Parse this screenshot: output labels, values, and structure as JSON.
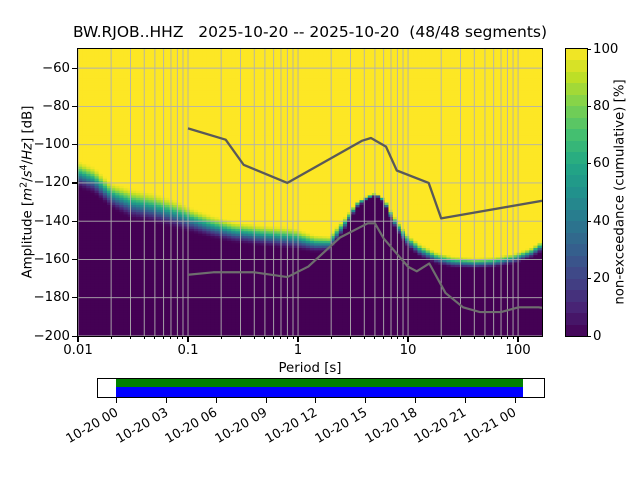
{
  "title": "BW.RJOB..HHZ   2025-10-20 -- 2025-10-20  (48/48 segments)",
  "axes": {
    "x": {
      "label": "Period [s]",
      "tick_labels": [
        "0.01",
        "0.1",
        "1",
        "10",
        "100"
      ],
      "tick_values": [
        0.01,
        0.1,
        1,
        10,
        100
      ]
    },
    "y": {
      "label_parts": {
        "prefix": "Amplitude [",
        "m": "m",
        "m_exp": "2",
        "slash1": "/",
        "s": "s",
        "s_exp": "4",
        "slash2": "/",
        "hz": "Hz",
        "suffix": "] [dB]"
      },
      "tick_labels": [
        "−60",
        "−80",
        "−100",
        "−120",
        "−140",
        "−160",
        "−180",
        "−200"
      ],
      "tick_values": [
        -60,
        -80,
        -100,
        -120,
        -140,
        -160,
        -180,
        -200
      ]
    }
  },
  "colorbar": {
    "label": "non-exceedance (cumulative) [%]",
    "tick_labels": [
      "0",
      "20",
      "40",
      "60",
      "80",
      "100"
    ],
    "tick_values": [
      0,
      20,
      40,
      60,
      80,
      100
    ],
    "discrete_steps": 25
  },
  "timeline": {
    "tick_labels": [
      "10-20 00",
      "10-20 03",
      "10-20 06",
      "10-20 09",
      "10-20 12",
      "10-20 15",
      "10-20 18",
      "10-20 21",
      "10-21 00"
    ],
    "coverage_color_top": "#008000",
    "coverage_color_bottom": "#0000ff"
  },
  "chart_data": {
    "type": "heatmap",
    "title": "BW.RJOB..HHZ  2025-10-20 -- 2025-10-20  (48/48 segments)",
    "xlabel": "Period [s]",
    "ylabel": "Amplitude [m^2/s^4/Hz] [dB]",
    "xscale": "log",
    "xlim": [
      0.01,
      165
    ],
    "ylim": [
      -200,
      -50
    ],
    "grid": true,
    "grid_color": "#b0b0b0",
    "colorbar_label": "non-exceedance (cumulative) [%]",
    "colorbar_range": [
      0,
      100
    ],
    "colormap_viridis": [
      "#440154",
      "#482475",
      "#414487",
      "#355f8d",
      "#2a788e",
      "#21918c",
      "#22a884",
      "#44bf70",
      "#7ad151",
      "#bddf26",
      "#fde725"
    ],
    "period_bin_octave_fraction": 0.125,
    "db_bin_width": 1.25,
    "cumulative_band": {
      "description": "per period [s]: dB level of 100% (top of distribution) and 0% (bottom of distribution) non-exceedance",
      "points": [
        [
          0.01,
          -107.5,
          -123.0
        ],
        [
          0.014,
          -111.0,
          -126.0
        ],
        [
          0.02,
          -119.0,
          -133.5
        ],
        [
          0.03,
          -122.0,
          -139.0
        ],
        [
          0.05,
          -124.5,
          -141.5
        ],
        [
          0.08,
          -128.5,
          -144.5
        ],
        [
          0.11,
          -132.5,
          -146.5
        ],
        [
          0.16,
          -136.0,
          -149.0
        ],
        [
          0.26,
          -139.5,
          -151.5
        ],
        [
          0.5,
          -141.5,
          -153.5
        ],
        [
          0.9,
          -142.5,
          -155.0
        ],
        [
          1.4,
          -146.5,
          -156.5
        ],
        [
          1.9,
          -147.2,
          -156.0
        ],
        [
          2.4,
          -140.5,
          -148.5
        ],
        [
          2.8,
          -136.0,
          -143.0
        ],
        [
          3.4,
          -129.5,
          -133.5
        ],
        [
          4.2,
          -126.3,
          -129.0
        ],
        [
          5.0,
          -125.0,
          -127.0
        ],
        [
          5.6,
          -125.8,
          -128.0
        ],
        [
          6.3,
          -129.0,
          -133.0
        ],
        [
          7.3,
          -136.0,
          -142.0
        ],
        [
          8.5,
          -141.0,
          -148.5
        ],
        [
          10.0,
          -146.5,
          -154.0
        ],
        [
          13.0,
          -151.5,
          -159.0
        ],
        [
          18.0,
          -155.5,
          -162.5
        ],
        [
          25.0,
          -157.8,
          -164.3
        ],
        [
          40.0,
          -158.8,
          -164.8
        ],
        [
          60.0,
          -158.3,
          -164.3
        ],
        [
          90.0,
          -156.5,
          -162.5
        ],
        [
          130.0,
          -153.5,
          -159.5
        ],
        [
          165.0,
          -149.5,
          -156.0
        ]
      ]
    },
    "noise_models": {
      "color_high": "#595959",
      "color_low": "#6e6e6e",
      "nhnm": {
        "periods": [
          0.1,
          0.22,
          0.32,
          0.8,
          3.8,
          4.6,
          6.3,
          7.9,
          15.4,
          20.0,
          354.8
        ],
        "db": [
          -91.5,
          -97.4,
          -110.5,
          -120.0,
          -98.0,
          -96.5,
          -101.0,
          -113.5,
          -120.0,
          -138.5,
          -126.0
        ]
      },
      "nlnm": {
        "periods": [
          0.1,
          0.17,
          0.4,
          0.8,
          1.24,
          2.4,
          4.3,
          5.0,
          6.0,
          10.0,
          12.0,
          15.6,
          21.9,
          31.6,
          45.0,
          70.0,
          101.0,
          154.0,
          328.0
        ],
        "db": [
          -168.0,
          -166.7,
          -166.7,
          -169.2,
          -163.7,
          -148.6,
          -141.1,
          -141.1,
          -149.0,
          -163.8,
          -166.2,
          -162.1,
          -177.5,
          -185.0,
          -187.5,
          -187.5,
          -185.0,
          -185.0,
          -187.5
        ]
      }
    }
  }
}
